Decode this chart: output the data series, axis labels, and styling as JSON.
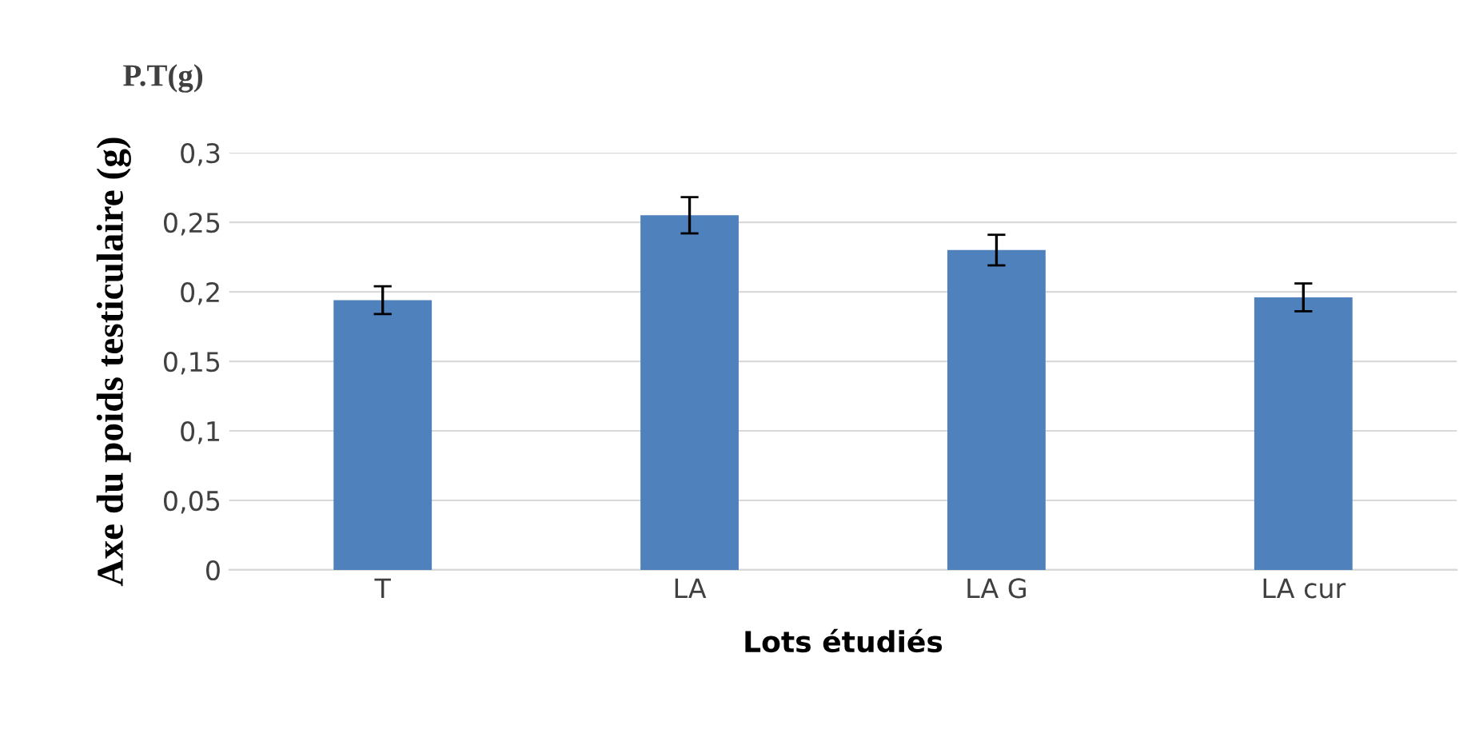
{
  "chart_data": {
    "type": "bar",
    "title": "P.T(g)",
    "xlabel": "Lots étudiés",
    "ylabel": "Axe du poids testiculaire (g)",
    "categories": [
      "T",
      "LA",
      "LA G",
      "LA cur"
    ],
    "values": [
      0.194,
      0.255,
      0.23,
      0.196
    ],
    "errors": [
      0.01,
      0.013,
      0.011,
      0.01
    ],
    "color": "#4f81bd",
    "ylim": [
      0,
      0.3
    ],
    "yticks": [
      0,
      {
        "value": 0.05,
        "label": "0,05"
      },
      {
        "value": 0.1,
        "label": "0,1"
      },
      {
        "value": 0.15,
        "label": "0,15"
      },
      {
        "value": 0.2,
        "label": "0,2"
      },
      {
        "value": 0.25,
        "label": "0,25"
      },
      {
        "value": 0.3,
        "label": "0,3"
      }
    ],
    "grid": "y",
    "legend": false
  }
}
